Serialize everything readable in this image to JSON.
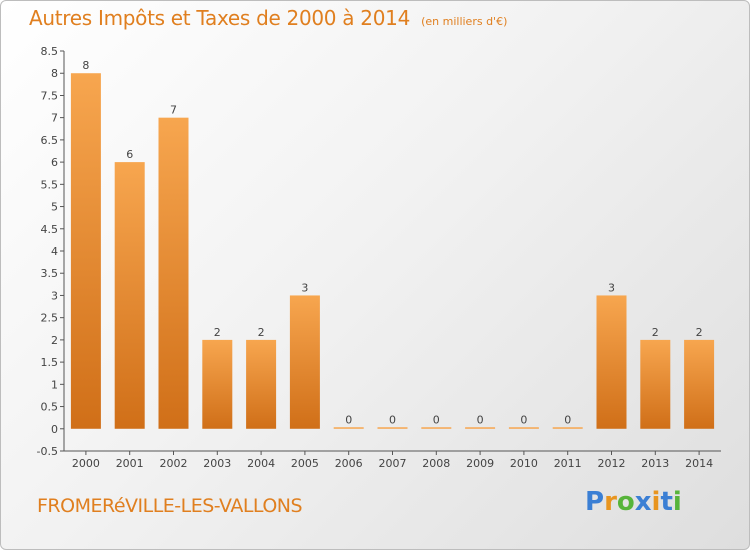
{
  "title": "Autres Impôts et Taxes de 2000 à 2014",
  "unit_label": "(en milliers d'€)",
  "commune": "FROMERéVILLE-LES-VALLONS",
  "logo": {
    "letters": [
      "P",
      "r",
      "o",
      "x",
      "i",
      "t",
      "i"
    ],
    "colors": [
      "#3b7fd4",
      "#e8951f",
      "#57b43a",
      "#3b7fd4",
      "#e8951f",
      "#3b7fd4",
      "#57b43a"
    ]
  },
  "colors": {
    "accent": "#e07f1f",
    "bar_light": "#f7a64f",
    "bar_dark": "#d06f18"
  },
  "chart_data": {
    "type": "bar",
    "categories": [
      "2000",
      "2001",
      "2002",
      "2003",
      "2004",
      "2005",
      "2006",
      "2007",
      "2008",
      "2009",
      "2010",
      "2011",
      "2012",
      "2013",
      "2014"
    ],
    "values": [
      8,
      6,
      7,
      2,
      2,
      3,
      0,
      0,
      0,
      0,
      0,
      0,
      3,
      2,
      2
    ],
    "value_labels": [
      "8",
      "6",
      "7",
      "2",
      "2",
      "3",
      "0",
      "0",
      "0",
      "0",
      "0",
      "0",
      "3",
      "2",
      "2"
    ],
    "yticks": [
      "-0.5",
      "0",
      "0.5",
      "1",
      "1.5",
      "2",
      "2.5",
      "3",
      "3.5",
      "4",
      "4.5",
      "5",
      "5.5",
      "6",
      "6.5",
      "7",
      "7.5",
      "8",
      "8.5"
    ],
    "ylim": [
      -0.5,
      8.5
    ],
    "grid": false
  }
}
